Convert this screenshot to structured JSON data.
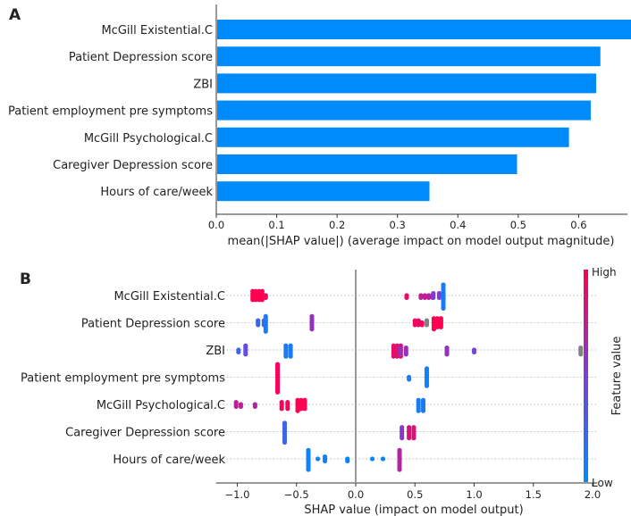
{
  "chart_data": [
    {
      "panel": "A",
      "type": "bar",
      "orientation": "horizontal",
      "categories": [
        "McGill Existential.C",
        "Patient Depression score",
        "ZBI",
        "Patient employment pre symptoms",
        "McGill Psychological.C",
        "Caregiver Depression score",
        "Hours of care/week"
      ],
      "values": [
        0.742,
        0.636,
        0.629,
        0.62,
        0.584,
        0.498,
        0.353
      ],
      "xlabel": "mean(|SHAP value|) (average impact on model output magnitude)",
      "xlim": [
        0,
        0.78
      ],
      "xticks": [
        "0.0",
        "0.1",
        "0.2",
        "0.3",
        "0.4",
        "0.5",
        "0.6",
        "0.7"
      ],
      "color": "#008bfb"
    },
    {
      "panel": "B",
      "type": "scatter",
      "subtype": "beeswarm",
      "categories": [
        "McGill Existential.C",
        "Patient Depression score",
        "ZBI",
        "Patient employment pre symptoms",
        "McGill Psychological.C",
        "Caregiver Depression score",
        "Hours of care/week"
      ],
      "xlabel": "SHAP value (impact on model output)",
      "xlim": [
        -1.18,
        2.04
      ],
      "xticks": [
        "−1.0",
        "−0.5",
        "0.0",
        "0.5",
        "1.0",
        "1.5",
        "2.0"
      ],
      "colorbar": {
        "label": "Feature value",
        "high": "High",
        "low": "Low",
        "low_color": "#008bfb",
        "high_color": "#ff0052",
        "missing_color": "#808080"
      },
      "clusters": [
        [
          {
            "x": -0.83,
            "n": 20,
            "v": 1.0,
            "w": 0.08
          },
          {
            "x": -0.76,
            "n": 2,
            "v": 0.95,
            "w": 0.02
          },
          {
            "x": 0.43,
            "n": 2,
            "v": 0.95,
            "w": 0
          },
          {
            "x": 0.6,
            "n": 8,
            "v": 0.75,
            "w": 0.1
          },
          {
            "x": 0.68,
            "n": 6,
            "v": 0.5,
            "w": 0.05
          },
          {
            "x": 0.74,
            "n": 12,
            "v": 0.1,
            "w": 0
          }
        ],
        [
          {
            "x": -0.8,
            "n": 6,
            "v": 0.25,
            "w": 0.05
          },
          {
            "x": -0.76,
            "n": 8,
            "v": 0.1,
            "w": 0
          },
          {
            "x": -0.37,
            "n": 7,
            "v": 0.6,
            "w": 0.02
          },
          {
            "x": 0.53,
            "n": 8,
            "v": 0.95,
            "w": 0.06
          },
          {
            "x": 0.6,
            "n": 3,
            "v": -1,
            "w": 0.02
          },
          {
            "x": 0.69,
            "n": 16,
            "v": 1.0,
            "w": 0.06
          }
        ],
        [
          {
            "x": -0.99,
            "n": 2,
            "v": 0.25,
            "w": 0.02
          },
          {
            "x": -0.93,
            "n": 5,
            "v": 0.4,
            "w": 0.03
          },
          {
            "x": -0.57,
            "n": 12,
            "v": 0.1,
            "w": 0.04
          },
          {
            "x": 0.35,
            "n": 18,
            "v": 0.9,
            "w": 0.06
          },
          {
            "x": 0.4,
            "n": 8,
            "v": 0.6,
            "w": 0.05
          },
          {
            "x": 0.77,
            "n": 4,
            "v": 0.6,
            "w": 0.03
          },
          {
            "x": 1.0,
            "n": 2,
            "v": 0.45,
            "w": 0
          },
          {
            "x": 1.9,
            "n": 4,
            "v": -1,
            "w": 0
          }
        ],
        [
          {
            "x": -0.66,
            "n": 14,
            "v": 1.0,
            "w": 0
          },
          {
            "x": 0.45,
            "n": 2,
            "v": 0.1,
            "w": 0
          },
          {
            "x": 0.6,
            "n": 9,
            "v": 0.05,
            "w": 0
          }
        ],
        [
          {
            "x": -0.99,
            "n": 5,
            "v": 0.75,
            "w": 0.04
          },
          {
            "x": -0.85,
            "n": 2,
            "v": 0.7,
            "w": 0.01
          },
          {
            "x": -0.6,
            "n": 8,
            "v": 0.95,
            "w": 0.05
          },
          {
            "x": -0.46,
            "n": 16,
            "v": 1.0,
            "w": 0.06
          },
          {
            "x": 0.55,
            "n": 12,
            "v": 0.1,
            "w": 0.04
          }
        ],
        [
          {
            "x": -0.6,
            "n": 10,
            "v": 0.25,
            "w": 0.03
          },
          {
            "x": 0.39,
            "n": 6,
            "v": 0.55,
            "w": 0.03
          },
          {
            "x": 0.47,
            "n": 12,
            "v": 0.85,
            "w": 0.04
          }
        ],
        [
          {
            "x": -0.4,
            "n": 10,
            "v": 0.05,
            "w": 0.02
          },
          {
            "x": -0.32,
            "n": 1,
            "v": 0.05,
            "w": 0
          },
          {
            "x": -0.26,
            "n": 3,
            "v": 0.05,
            "w": 0
          },
          {
            "x": -0.07,
            "n": 2,
            "v": 0.05,
            "w": 0.02
          },
          {
            "x": 0.14,
            "n": 1,
            "v": 0.05,
            "w": 0
          },
          {
            "x": 0.23,
            "n": 1,
            "v": 0.05,
            "w": 0
          },
          {
            "x": 0.37,
            "n": 10,
            "v": 0.7,
            "w": 0.03
          }
        ]
      ]
    }
  ],
  "panel_labels": {
    "a": "A",
    "b": "B"
  }
}
